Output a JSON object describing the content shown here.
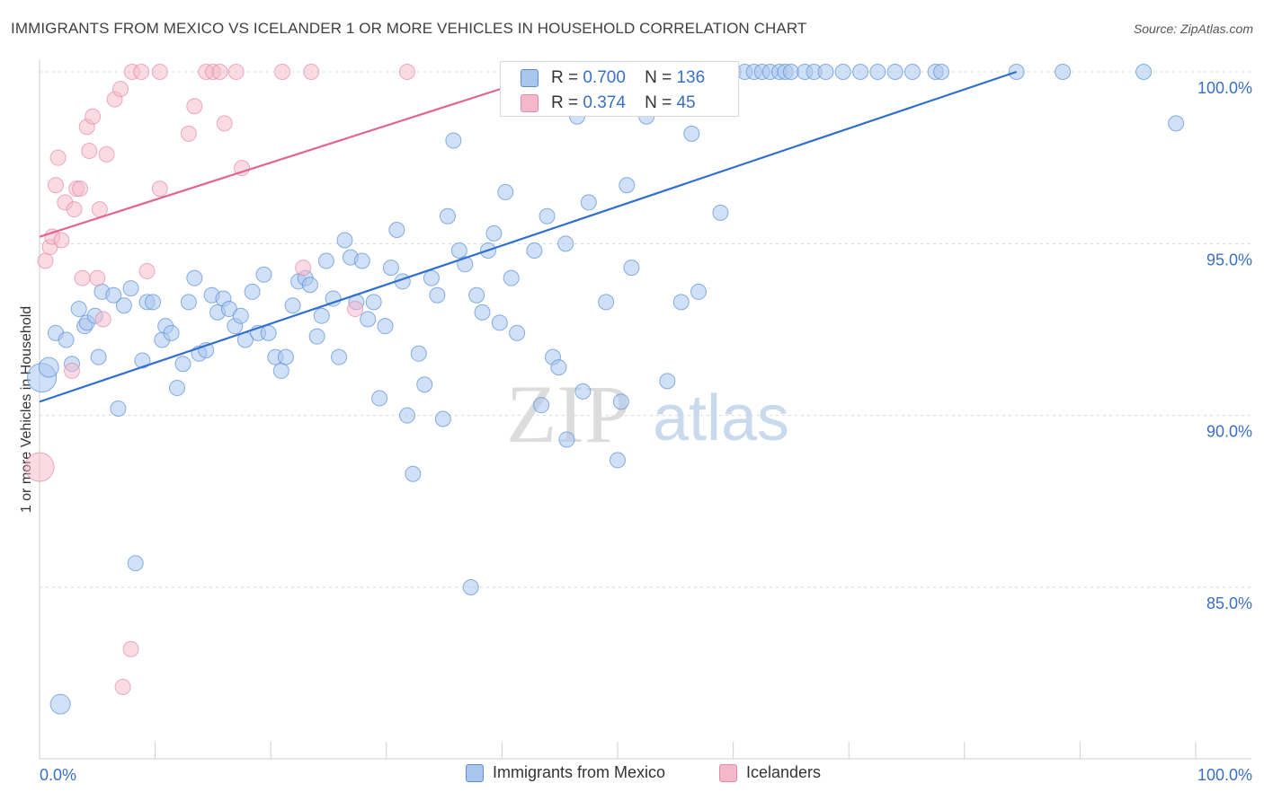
{
  "title": "IMMIGRANTS FROM MEXICO VS ICELANDER 1 OR MORE VEHICLES IN HOUSEHOLD CORRELATION CHART",
  "source": "Source: ZipAtlas.com",
  "watermark": {
    "zip": "ZIP",
    "atlas": "atlas"
  },
  "stats": {
    "r_label": "R =",
    "n_label": "N =",
    "series": [
      {
        "name": "Immigrants from Mexico",
        "r": "0.700",
        "n": "136",
        "color": "#a9c6ef",
        "stroke": "#5b8ed6"
      },
      {
        "name": "Icelanders",
        "r": "0.374",
        "n": "45",
        "color": "#f5b8ca",
        "stroke": "#e58aa6"
      }
    ]
  },
  "chart_data": {
    "type": "scatter",
    "title": "IMMIGRANTS FROM MEXICO VS ICELANDER 1 OR MORE VEHICLES IN HOUSEHOLD CORRELATION CHART",
    "xlabel": "",
    "ylabel": "1 or more Vehicles in Household",
    "xlim": [
      0,
      100
    ],
    "ylim": [
      80.5,
      100.5
    ],
    "x_tick_labels": [
      "0.0%",
      "100.0%"
    ],
    "y_tick_labels": [
      "100.0%",
      "95.0%",
      "90.0%",
      "85.0%"
    ],
    "y_ticks": [
      100,
      95,
      90,
      85
    ],
    "legend": [
      "Immigrants from Mexico",
      "Icelanders"
    ],
    "series": [
      {
        "name": "Immigrants from Mexico",
        "color": "#a9c6ef",
        "stroke": "#5b8ed6",
        "line": {
          "x0": 0,
          "y0": 90.4,
          "x1": 84.5,
          "y1": 100.0,
          "color": "#2f6fd1"
        },
        "points": [
          [
            0.2,
            91.1,
            3
          ],
          [
            0.8,
            91.4,
            2
          ],
          [
            1.4,
            92.4,
            1
          ],
          [
            2.3,
            92.2,
            1
          ],
          [
            2.8,
            91.5,
            1
          ],
          [
            3.4,
            93.1,
            1
          ],
          [
            3.9,
            92.6,
            1
          ],
          [
            4.1,
            92.7,
            1
          ],
          [
            4.8,
            92.9,
            1
          ],
          [
            5.1,
            91.7,
            1
          ],
          [
            5.4,
            93.6,
            1
          ],
          [
            6.4,
            93.5,
            1
          ],
          [
            7.3,
            93.2,
            1
          ],
          [
            7.9,
            93.7,
            1
          ],
          [
            8.9,
            91.6,
            1
          ],
          [
            9.3,
            93.3,
            1
          ],
          [
            9.8,
            93.3,
            1
          ],
          [
            10.6,
            92.2,
            1
          ],
          [
            10.9,
            92.6,
            1
          ],
          [
            11.4,
            92.4,
            1
          ],
          [
            11.9,
            90.8,
            1
          ],
          [
            12.4,
            91.5,
            1
          ],
          [
            12.9,
            93.3,
            1
          ],
          [
            13.4,
            94.0,
            1
          ],
          [
            13.8,
            91.8,
            1
          ],
          [
            14.4,
            91.9,
            1
          ],
          [
            14.9,
            93.5,
            1
          ],
          [
            15.4,
            93.0,
            1
          ],
          [
            15.9,
            93.4,
            1
          ],
          [
            16.4,
            93.1,
            1
          ],
          [
            16.9,
            92.6,
            1
          ],
          [
            17.4,
            92.9,
            1
          ],
          [
            17.8,
            92.2,
            1
          ],
          [
            18.4,
            93.6,
            1
          ],
          [
            18.9,
            92.4,
            1
          ],
          [
            19.4,
            94.1,
            1
          ],
          [
            19.8,
            92.4,
            1
          ],
          [
            20.4,
            91.7,
            1
          ],
          [
            20.9,
            91.3,
            1
          ],
          [
            21.3,
            91.7,
            1
          ],
          [
            21.9,
            93.2,
            1
          ],
          [
            22.4,
            93.9,
            1
          ],
          [
            23.0,
            94.0,
            1
          ],
          [
            23.4,
            93.8,
            1
          ],
          [
            24.0,
            92.3,
            1
          ],
          [
            24.4,
            92.9,
            1
          ],
          [
            24.8,
            94.5,
            1
          ],
          [
            25.4,
            93.4,
            1
          ],
          [
            25.9,
            91.7,
            1
          ],
          [
            26.4,
            95.1,
            1
          ],
          [
            26.9,
            94.6,
            1
          ],
          [
            27.4,
            93.3,
            1
          ],
          [
            27.9,
            94.5,
            1
          ],
          [
            28.4,
            92.8,
            1
          ],
          [
            28.9,
            93.3,
            1
          ],
          [
            29.4,
            90.5,
            1
          ],
          [
            29.9,
            92.6,
            1
          ],
          [
            30.4,
            94.3,
            1
          ],
          [
            30.9,
            95.4,
            1
          ],
          [
            31.4,
            93.9,
            1
          ],
          [
            31.8,
            90.0,
            1
          ],
          [
            32.3,
            88.3,
            1
          ],
          [
            32.8,
            91.8,
            1
          ],
          [
            33.3,
            90.9,
            1
          ],
          [
            33.9,
            94.0,
            1
          ],
          [
            34.4,
            93.5,
            1
          ],
          [
            34.9,
            89.9,
            1
          ],
          [
            35.3,
            95.8,
            1
          ],
          [
            35.8,
            98.0,
            1
          ],
          [
            36.3,
            94.8,
            1
          ],
          [
            36.8,
            94.4,
            1
          ],
          [
            37.3,
            85.0,
            1
          ],
          [
            37.8,
            93.5,
            1
          ],
          [
            38.3,
            93.0,
            1
          ],
          [
            38.8,
            94.8,
            1
          ],
          [
            39.3,
            95.3,
            1
          ],
          [
            39.8,
            92.7,
            1
          ],
          [
            40.3,
            96.5,
            1
          ],
          [
            40.8,
            94.0,
            1
          ],
          [
            41.3,
            92.4,
            1
          ],
          [
            42.8,
            94.8,
            1
          ],
          [
            43.4,
            90.3,
            1
          ],
          [
            43.9,
            95.8,
            1
          ],
          [
            44.4,
            91.7,
            1
          ],
          [
            44.9,
            91.4,
            1
          ],
          [
            45.5,
            95.0,
            1
          ],
          [
            45.6,
            89.3,
            1
          ],
          [
            46.5,
            98.7,
            1
          ],
          [
            47.0,
            90.7,
            1
          ],
          [
            47.5,
            96.2,
            1
          ],
          [
            48.0,
            100.0,
            1
          ],
          [
            49.0,
            93.3,
            1
          ],
          [
            50.0,
            88.7,
            1
          ],
          [
            50.3,
            90.4,
            1
          ],
          [
            50.8,
            96.7,
            1
          ],
          [
            51.2,
            94.3,
            1
          ],
          [
            52.0,
            99.8,
            1
          ],
          [
            52.5,
            98.7,
            1
          ],
          [
            53.3,
            100.0,
            1
          ],
          [
            54.0,
            100.0,
            1
          ],
          [
            54.3,
            91.0,
            1
          ],
          [
            55.0,
            100.0,
            1
          ],
          [
            55.5,
            93.3,
            1
          ],
          [
            56.0,
            100.0,
            1
          ],
          [
            56.4,
            98.2,
            1
          ],
          [
            57.0,
            93.6,
            1
          ],
          [
            57.8,
            100.0,
            1
          ],
          [
            58.5,
            100.0,
            1
          ],
          [
            58.9,
            95.9,
            1
          ],
          [
            59.2,
            100.0,
            1
          ],
          [
            60.0,
            100.0,
            1
          ],
          [
            61.0,
            100.0,
            1
          ],
          [
            61.8,
            100.0,
            1
          ],
          [
            62.5,
            100.0,
            1
          ],
          [
            63.2,
            100.0,
            1
          ],
          [
            64.0,
            100.0,
            1
          ],
          [
            64.5,
            100.0,
            1
          ],
          [
            65.0,
            100.0,
            1
          ],
          [
            66.2,
            100.0,
            1
          ],
          [
            67.0,
            100.0,
            1
          ],
          [
            68.0,
            100.0,
            1
          ],
          [
            69.5,
            100.0,
            1
          ],
          [
            71.0,
            100.0,
            1
          ],
          [
            72.5,
            100.0,
            1
          ],
          [
            74.0,
            100.0,
            1
          ],
          [
            75.5,
            100.0,
            1
          ],
          [
            77.5,
            100.0,
            1
          ],
          [
            78.0,
            100.0,
            1
          ],
          [
            84.5,
            100.0,
            1
          ],
          [
            88.5,
            100.0,
            1
          ],
          [
            95.5,
            100.0,
            1
          ],
          [
            98.3,
            98.5,
            1
          ],
          [
            1.8,
            81.6,
            2
          ],
          [
            8.3,
            85.7,
            1
          ],
          [
            6.8,
            90.2,
            1
          ],
          [
            58.7,
            100.0,
            1
          ]
        ]
      },
      {
        "name": "Icelanders",
        "color": "#f5b8ca",
        "stroke": "#e58aa6",
        "line": {
          "x0": 0,
          "y0": 95.2,
          "x1": 44.5,
          "y1": 100.0,
          "color": "#e2648f"
        },
        "points": [
          [
            0.0,
            88.5,
            3
          ],
          [
            0.5,
            94.5,
            1
          ],
          [
            0.9,
            94.9,
            1
          ],
          [
            1.1,
            95.2,
            1
          ],
          [
            1.4,
            96.7,
            1
          ],
          [
            1.6,
            97.5,
            1
          ],
          [
            1.9,
            95.1,
            1
          ],
          [
            2.2,
            96.2,
            1
          ],
          [
            2.8,
            91.3,
            1
          ],
          [
            3.0,
            96.0,
            1
          ],
          [
            3.2,
            96.6,
            1
          ],
          [
            3.5,
            96.6,
            1
          ],
          [
            3.7,
            94.0,
            1
          ],
          [
            4.1,
            98.4,
            1
          ],
          [
            4.3,
            97.7,
            1
          ],
          [
            4.6,
            98.7,
            1
          ],
          [
            5.0,
            94.0,
            1
          ],
          [
            5.2,
            96.0,
            1
          ],
          [
            5.5,
            92.8,
            1
          ],
          [
            5.8,
            97.6,
            1
          ],
          [
            6.5,
            99.2,
            1
          ],
          [
            7.0,
            99.5,
            1
          ],
          [
            7.9,
            83.2,
            1
          ],
          [
            7.2,
            82.1,
            1
          ],
          [
            8.0,
            100.0,
            1
          ],
          [
            8.8,
            100.0,
            1
          ],
          [
            9.3,
            94.2,
            1
          ],
          [
            10.4,
            100.0,
            1
          ],
          [
            10.4,
            96.6,
            1
          ],
          [
            12.9,
            98.2,
            1
          ],
          [
            13.4,
            99.0,
            1
          ],
          [
            14.4,
            100.0,
            1
          ],
          [
            15.0,
            100.0,
            1
          ],
          [
            15.6,
            100.0,
            1
          ],
          [
            16.0,
            98.5,
            1
          ],
          [
            17.0,
            100.0,
            1
          ],
          [
            17.5,
            97.2,
            1
          ],
          [
            21.0,
            100.0,
            1
          ],
          [
            22.8,
            94.3,
            1
          ],
          [
            23.5,
            100.0,
            1
          ],
          [
            27.3,
            93.1,
            1
          ],
          [
            31.8,
            100.0,
            1
          ],
          [
            41.0,
            100.0,
            1
          ],
          [
            44.0,
            100.0,
            1
          ],
          [
            46.5,
            100.0,
            1
          ]
        ]
      }
    ]
  }
}
